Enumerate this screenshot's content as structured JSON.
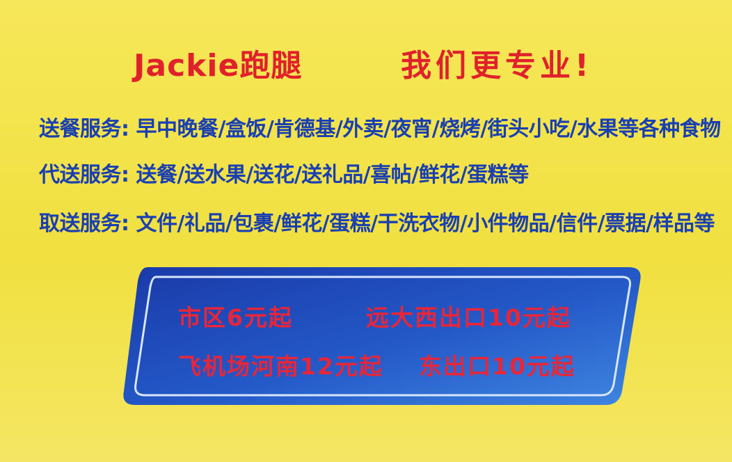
{
  "header": {
    "brand": "Jackie跑腿",
    "slogan": "我们更专业!"
  },
  "services": [
    {
      "text": "送餐服务: 早中晚餐/盒饭/肯德基/外卖/夜宵/烧烤/街头小吃/水果等各种食物"
    },
    {
      "text": "代送服务: 送餐/送水果/送花/送礼品/喜帖/鲜花/蛋糕等"
    },
    {
      "text": "取送服务: 文件/礼品/包裹/鲜花/蛋糕/干洗衣物/小件物品/信件/票据/样品等"
    }
  ],
  "prices": {
    "downtown": "市区6元起",
    "far_west_exit": "远大西出口10元起",
    "airport_henan": "飞机场河南12元起",
    "east_exit": "东出口10元起"
  },
  "colors": {
    "background": "#f2e24a",
    "title_red": "#e0202a",
    "service_blue": "#1a3fb0",
    "panel_blue": "#1c4fb8",
    "price_red": "#e8263a"
  }
}
